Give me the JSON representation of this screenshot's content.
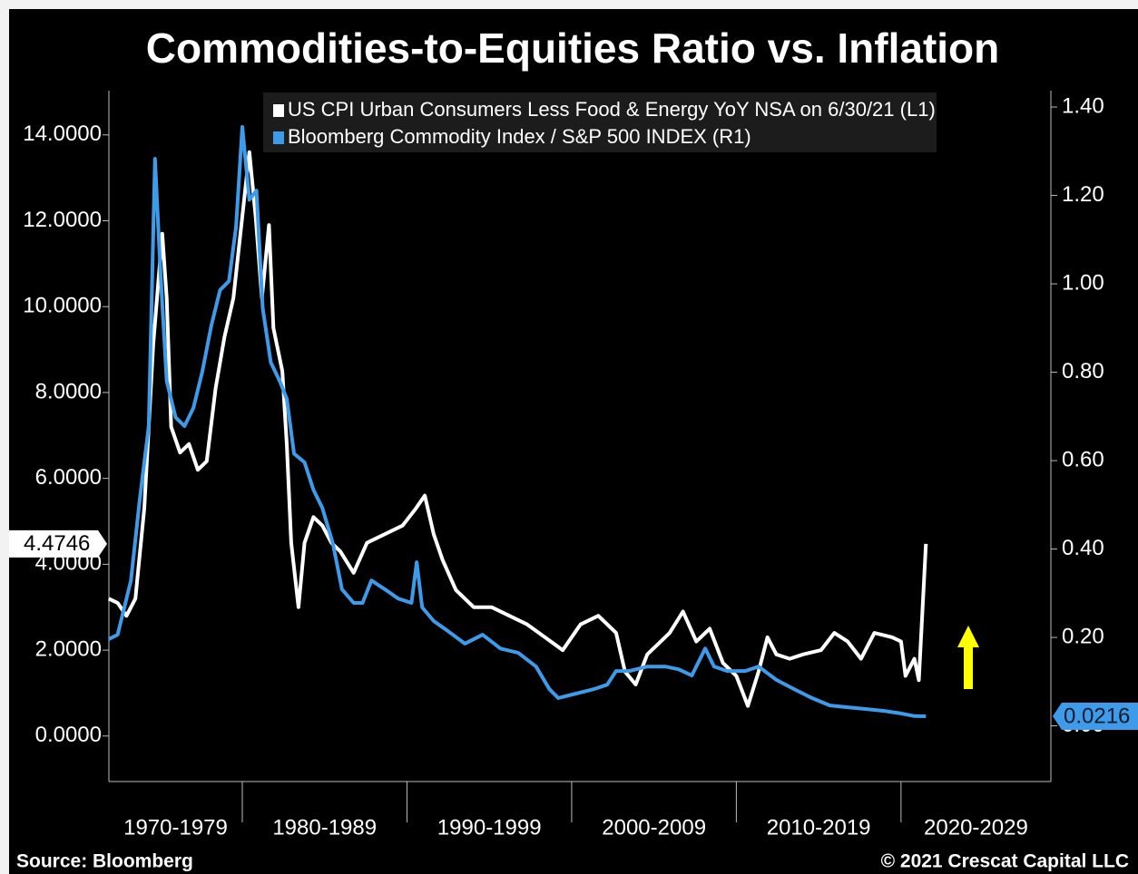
{
  "chart_data": {
    "type": "line",
    "title": "Commodities-to-Equities Ratio vs. Inflation",
    "source": "Source: Bloomberg",
    "credit": "© 2021 Crescat Capital LLC",
    "categories": [
      "1970-1979",
      "1980-1989",
      "1990-1999",
      "2000-2009",
      "2010-2019",
      "2020-2029"
    ],
    "xlim": [
      1971.9,
      2029.1
    ],
    "xticks": [
      1980,
      1990,
      2000,
      2010,
      2020
    ],
    "ylim": [
      -1.06,
      15.03
    ],
    "yticks": [
      {
        "value": 0,
        "label": "0.0000"
      },
      {
        "value": 2,
        "label": "2.0000"
      },
      {
        "value": 4,
        "label": "4.0000"
      },
      {
        "value": 6,
        "label": "6.0000"
      },
      {
        "value": 8,
        "label": "8.0000"
      },
      {
        "value": 10,
        "label": "10.0000"
      },
      {
        "value": 12,
        "label": "12.0000"
      },
      {
        "value": 14,
        "label": "14.0000"
      }
    ],
    "y2lim": [
      -0.126,
      1.437
    ],
    "y2ticks": [
      {
        "value": 0,
        "label": "0.00"
      },
      {
        "value": 0.2,
        "label": "0.20"
      },
      {
        "value": 0.4,
        "label": "0.40"
      },
      {
        "value": 0.6,
        "label": "0.60"
      },
      {
        "value": 0.8,
        "label": "0.80"
      },
      {
        "value": 1,
        "label": "1.00"
      },
      {
        "value": 1.2,
        "label": "1.20"
      },
      {
        "value": 1.4,
        "label": "1.40"
      }
    ],
    "legend": "top",
    "series": [
      {
        "name": "US CPI Urban Consumers Less Food & Energy YoY NSA  on 6/30/21 (L1)",
        "color": "#ffffff",
        "axis": "y",
        "x": [
          1971.89,
          1972.43,
          1972.97,
          1973.51,
          1974.05,
          1974.59,
          1975.14,
          1975.41,
          1975.68,
          1976.22,
          1976.76,
          1977.3,
          1977.84,
          1978.38,
          1978.92,
          1979.46,
          1980.0,
          1980.43,
          1980.81,
          1981.19,
          1981.62,
          1981.89,
          1982.43,
          1982.7,
          1982.97,
          1983.41,
          1983.78,
          1984.32,
          1984.86,
          1985.41,
          1985.95,
          1986.76,
          1987.57,
          1988.65,
          1989.73,
          1990.54,
          1991.08,
          1991.62,
          1992.16,
          1992.97,
          1994.05,
          1995.14,
          1996.22,
          1997.3,
          1998.38,
          1999.46,
          2000.54,
          2001.62,
          2002.7,
          2003.24,
          2003.89,
          2004.59,
          2005.41,
          2005.95,
          2006.76,
          2007.57,
          2008.38,
          2009.19,
          2010.0,
          2010.7,
          2011.35,
          2011.89,
          2012.43,
          2013.24,
          2014.05,
          2015.14,
          2015.95,
          2016.76,
          2017.57,
          2018.38,
          2019.46,
          2020.0,
          2020.27,
          2020.81,
          2021.08,
          2021.51
        ],
        "values": [
          3.2,
          3.1,
          2.8,
          3.2,
          5.3,
          9.1,
          11.7,
          10.2,
          7.2,
          6.6,
          6.8,
          6.2,
          6.4,
          8.1,
          9.3,
          10.2,
          12.1,
          13.6,
          12.1,
          10.2,
          11.9,
          9.5,
          8.5,
          6.8,
          4.5,
          3.0,
          4.5,
          5.1,
          4.9,
          4.5,
          4.3,
          3.8,
          4.5,
          4.7,
          4.9,
          5.3,
          5.6,
          4.7,
          4.1,
          3.4,
          3.0,
          3.0,
          2.8,
          2.6,
          2.3,
          2.0,
          2.6,
          2.8,
          2.4,
          1.5,
          1.2,
          1.9,
          2.2,
          2.4,
          2.9,
          2.2,
          2.5,
          1.7,
          1.4,
          0.7,
          1.5,
          2.3,
          1.9,
          1.8,
          1.9,
          2.0,
          2.4,
          2.2,
          1.8,
          2.4,
          2.3,
          2.2,
          1.4,
          1.8,
          1.3,
          4.4746
        ]
      },
      {
        "name": "Bloomberg Commodity Index / S&P 500 INDEX (R1)",
        "color": "#3d9be9",
        "axis": "y2",
        "x": [
          1971.89,
          1972.43,
          1973.24,
          1973.78,
          1974.32,
          1974.7,
          1975.03,
          1975.41,
          1975.95,
          1976.49,
          1977.03,
          1977.57,
          1978.11,
          1978.65,
          1979.19,
          1979.62,
          1980.0,
          1980.43,
          1980.86,
          1981.24,
          1981.73,
          1982.27,
          1982.7,
          1983.14,
          1983.78,
          1984.32,
          1984.86,
          1985.51,
          1986.05,
          1986.76,
          1987.3,
          1987.84,
          1988.65,
          1989.46,
          1990.27,
          1990.59,
          1990.92,
          1991.62,
          1992.43,
          1993.51,
          1994.59,
          1995.68,
          1996.76,
          1997.84,
          1998.65,
          1999.19,
          2000.27,
          2001.35,
          2002.16,
          2002.7,
          2003.51,
          2004.59,
          2005.68,
          2006.49,
          2007.3,
          2008.11,
          2008.65,
          2009.46,
          2010.54,
          2011.35,
          2012.43,
          2013.51,
          2014.59,
          2015.68,
          2016.76,
          2017.84,
          2018.92,
          2020.0,
          2020.81,
          2021.51
        ],
        "values": [
          0.196,
          0.206,
          0.329,
          0.514,
          0.678,
          1.283,
          1.027,
          0.78,
          0.698,
          0.678,
          0.719,
          0.801,
          0.904,
          0.986,
          1.006,
          1.129,
          1.355,
          1.19,
          1.211,
          0.945,
          0.822,
          0.78,
          0.74,
          0.616,
          0.596,
          0.534,
          0.493,
          0.411,
          0.309,
          0.278,
          0.278,
          0.329,
          0.309,
          0.288,
          0.278,
          0.37,
          0.268,
          0.237,
          0.216,
          0.186,
          0.206,
          0.175,
          0.165,
          0.134,
          0.083,
          0.063,
          0.073,
          0.083,
          0.093,
          0.124,
          0.124,
          0.134,
          0.134,
          0.128,
          0.114,
          0.175,
          0.134,
          0.124,
          0.124,
          0.134,
          0.104,
          0.083,
          0.063,
          0.046,
          0.042,
          0.038,
          0.034,
          0.028,
          0.022,
          0.0216
        ]
      }
    ]
  }
}
